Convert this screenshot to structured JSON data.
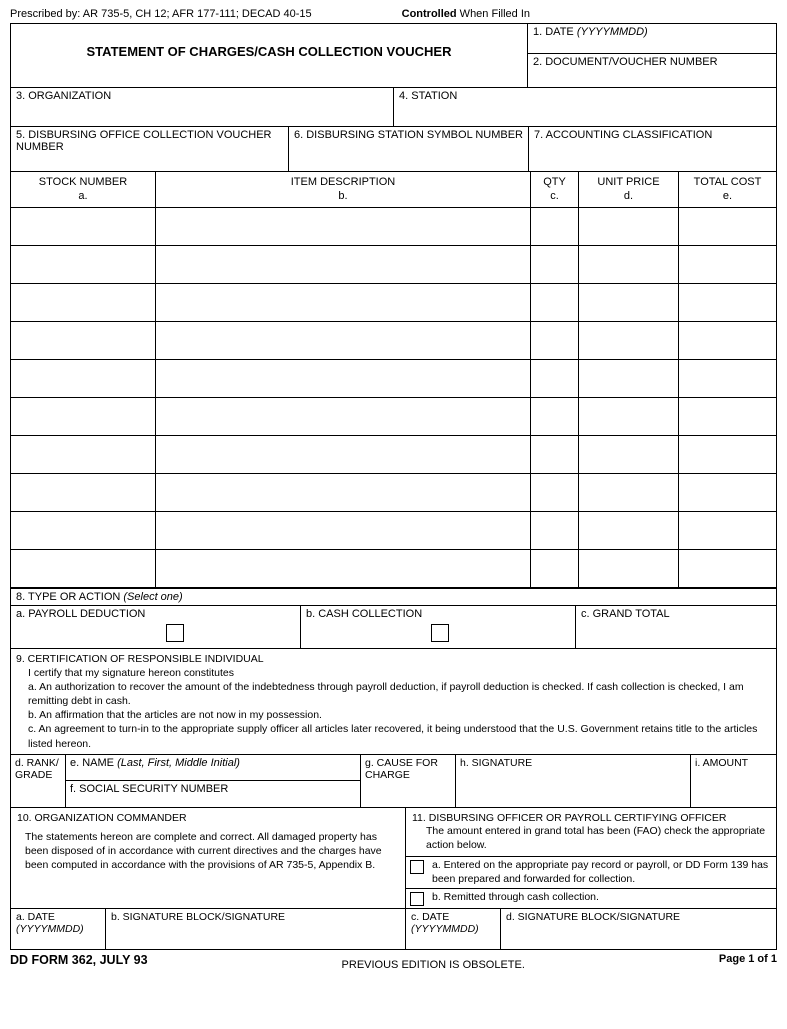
{
  "header": {
    "prescribed": "Prescribed by: AR 735-5, CH 12; AFR 177-111; DECAD 40-15",
    "controlled_bold": "Controlled",
    "controlled_rest": " When Filled In"
  },
  "title": "STATEMENT OF CHARGES/CASH COLLECTION VOUCHER",
  "fields": {
    "f1": "1. DATE ",
    "f1_italic": "(YYYYMMDD)",
    "f2": "2. DOCUMENT/VOUCHER NUMBER",
    "f3": "3. ORGANIZATION",
    "f4": "4. STATION",
    "f5": "5. DISBURSING OFFICE COLLECTION VOUCHER NUMBER",
    "f6": "6. DISBURSING STATION SYMBOL NUMBER",
    "f7": "7. ACCOUNTING CLASSIFICATION"
  },
  "items_header": {
    "a1": "STOCK NUMBER",
    "a2": "a.",
    "b1": "ITEM DESCRIPTION",
    "b2": "b.",
    "c1": "QTY",
    "c2": "c.",
    "d1": "UNIT PRICE",
    "d2": "d.",
    "e1": "TOTAL COST",
    "e2": "e."
  },
  "item_rows": 10,
  "section8": {
    "label": "8. TYPE OR ACTION ",
    "italic": "(Select one)",
    "a": "a. PAYROLL DEDUCTION",
    "b": "b. CASH COLLECTION",
    "c": "c. GRAND TOTAL"
  },
  "section9": {
    "title": "9. CERTIFICATION OF RESPONSIBLE INDIVIDUAL",
    "intro": "I certify that my signature hereon constitutes",
    "a": "a. An authorization to recover the amount of the indebtedness through payroll deduction, if payroll deduction is checked. If cash collection is checked, I am remitting debt in cash.",
    "b": "b. An affirmation that the articles are not now in my possession.",
    "c": "c. An agreement to turn-in to the appropriate supply officer all articles later recovered, it being understood that the U.S. Government retains title to the articles listed hereon."
  },
  "sig1": {
    "d": "d. RANK/ GRADE",
    "e": "e. NAME ",
    "e_italic": "(Last, First, Middle Initial)",
    "f": "f. SOCIAL SECURITY NUMBER",
    "g": "g. CAUSE FOR CHARGE",
    "h": "h. SIGNATURE",
    "i": "i. AMOUNT"
  },
  "section10": {
    "title": "10. ORGANIZATION COMMANDER",
    "body": "The statements hereon are complete and correct. All damaged property has been disposed of in accordance with current directives and the charges have been computed in accordance with the provisions of AR 735-5, Appendix B."
  },
  "section11": {
    "title": "11. DISBURSING OFFICER OR PAYROLL CERTIFYING OFFICER",
    "body": "The amount entered in grand total has been (FAO) check the appropriate action below.",
    "a": "a. Entered on the appropriate pay record or payroll, or DD Form 139 has been prepared and forwarded for collection.",
    "b": "b. Remitted through cash collection."
  },
  "final": {
    "a": "a. DATE",
    "a_italic": "(YYYYMMDD)",
    "b": "b. SIGNATURE BLOCK/SIGNATURE",
    "c": "c. DATE",
    "c_italic": "(YYYYMMDD)",
    "d": "d. SIGNATURE BLOCK/SIGNATURE"
  },
  "footer": {
    "form_id": "DD FORM 362, JULY 93",
    "obsolete": "PREVIOUS EDITION IS OBSOLETE.",
    "page": "Page 1 of 1"
  }
}
